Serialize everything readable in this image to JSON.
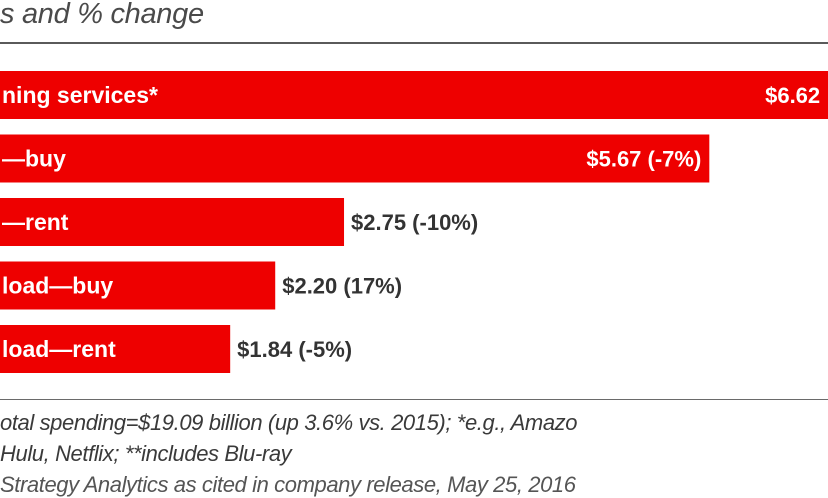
{
  "chart_data": {
    "type": "bar",
    "orientation": "horizontal",
    "subtitle": "s and % change",
    "categories": [
      "ning services*",
      "—buy",
      "—rent",
      "load—buy",
      "load—rent"
    ],
    "values": [
      6.62,
      5.67,
      2.75,
      2.2,
      1.84
    ],
    "value_labels": [
      "$6.62",
      "$5.67 (-7%)",
      "$2.75 (-10%)",
      "$2.20 (17%)",
      "$1.84 (-5%)"
    ],
    "bar_color": "#ee0000",
    "grid": false
  },
  "notes": {
    "line1": "otal spending=$19.09 billion (up 3.6% vs. 2015); *e.g., Amazo",
    "line2": "Hulu, Netflix; **includes Blu-ray",
    "line3": "Strategy Analytics as cited in company release, May 25, 2016"
  }
}
